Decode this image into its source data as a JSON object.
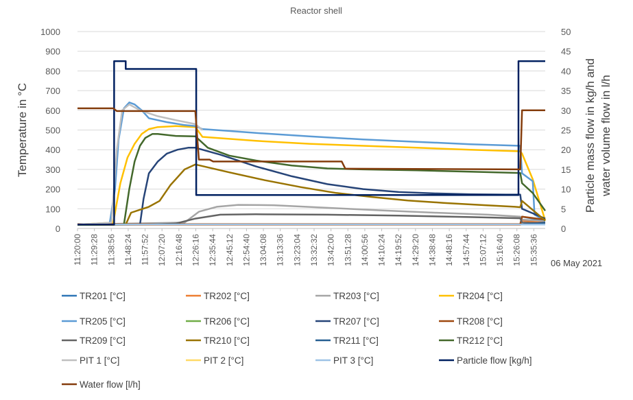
{
  "chart_data": {
    "type": "line",
    "title": "Reactor shell",
    "ylabel": "Temperature in °C",
    "y2label_line1": "Particle mass flow in kg/h and",
    "y2label_line2": "water volume flow in l/h",
    "date_note": "06 May 2021",
    "ylim": [
      0,
      1000
    ],
    "y2lim": [
      0,
      50
    ],
    "yticks": [
      "0",
      "100",
      "200",
      "300",
      "400",
      "500",
      "600",
      "700",
      "800",
      "900",
      "1000"
    ],
    "y2ticks": [
      "0",
      "5",
      "10",
      "15",
      "20",
      "25",
      "30",
      "35",
      "40",
      "45",
      "50"
    ],
    "xlim": [
      "11:20:00",
      "15:42:00"
    ],
    "xticks": [
      "11:20:00",
      "11:29:28",
      "11:38:56",
      "11:48:24",
      "11:57:52",
      "12:07:20",
      "12:16:48",
      "12:26:16",
      "12:35:44",
      "12:45:12",
      "12:54:40",
      "13:04:08",
      "13:13:36",
      "13:23:04",
      "13:32:32",
      "13:42:00",
      "13:51:28",
      "14:00:56",
      "14:10:24",
      "14:19:52",
      "14:29:20",
      "14:38:48",
      "14:48:16",
      "14:57:44",
      "15:07:12",
      "15:16:40",
      "15:26:08",
      "15:35:36"
    ],
    "grid": true,
    "legend_position": "bottom",
    "series": [
      {
        "name": "TR201 [°C]",
        "color": "#2E75B6",
        "axis": "left",
        "x": [
          "11:20:00",
          "15:28:00",
          "15:29:00",
          "15:42:00"
        ],
        "y": [
          20,
          20,
          60,
          40
        ]
      },
      {
        "name": "TR202 [°C]",
        "color": "#ED7D31",
        "axis": "left",
        "x": [
          "11:20:00",
          "15:28:00",
          "15:29:00",
          "15:42:00"
        ],
        "y": [
          18,
          18,
          40,
          30
        ]
      },
      {
        "name": "TR203 [°C]",
        "color": "#A5A5A5",
        "axis": "left",
        "x": [
          "11:20:00",
          "12:20:00",
          "12:28:00",
          "12:38:00",
          "12:50:00",
          "13:10:00",
          "13:40:00",
          "14:10:00",
          "14:40:00",
          "15:10:00",
          "15:28:00",
          "15:29:00",
          "15:42:00"
        ],
        "y": [
          20,
          30,
          85,
          110,
          120,
          118,
          105,
          92,
          80,
          70,
          60,
          45,
          38
        ]
      },
      {
        "name": "TR204 [°C]",
        "color": "#FFC000",
        "axis": "left",
        "x": [
          "11:20:00",
          "11:40:00",
          "11:44:00",
          "11:48:00",
          "11:52:00",
          "11:56:00",
          "12:00:00",
          "12:05:00",
          "12:15:00",
          "12:26:00",
          "12:30:00",
          "12:45:00",
          "13:00:00",
          "13:30:00",
          "14:00:00",
          "14:30:00",
          "15:00:00",
          "15:28:00",
          "15:29:00",
          "15:35:00",
          "15:42:00"
        ],
        "y": [
          20,
          30,
          230,
          360,
          430,
          480,
          505,
          515,
          520,
          515,
          465,
          455,
          445,
          430,
          420,
          410,
          400,
          392,
          380,
          250,
          40
        ]
      },
      {
        "name": "TR205 [°C]",
        "color": "#5B9BD5",
        "axis": "left",
        "x": [
          "11:20:00",
          "11:38:00",
          "11:41:00",
          "11:43:00",
          "11:46:00",
          "11:49:00",
          "11:52:00",
          "11:56:00",
          "12:00:00",
          "12:10:00",
          "12:20:00",
          "12:26:00",
          "12:30:00",
          "12:45:00",
          "13:00:00",
          "13:30:00",
          "14:00:00",
          "14:30:00",
          "15:00:00",
          "15:28:00",
          "15:29:00",
          "15:35:00",
          "15:36:00",
          "15:42:00"
        ],
        "y": [
          20,
          25,
          200,
          450,
          610,
          640,
          630,
          600,
          560,
          540,
          525,
          520,
          505,
          495,
          485,
          468,
          452,
          440,
          428,
          420,
          280,
          240,
          70,
          40
        ]
      },
      {
        "name": "TR206 [°C]",
        "color": "#70AD47",
        "axis": "left",
        "x": [
          "11:20:00",
          "15:28:00",
          "15:42:00"
        ],
        "y": [
          20,
          20,
          20
        ]
      },
      {
        "name": "TR207 [°C]",
        "color": "#264478",
        "axis": "left",
        "x": [
          "11:20:00",
          "11:55:00",
          "11:57:00",
          "12:00:00",
          "12:05:00",
          "12:10:00",
          "12:16:00",
          "12:22:00",
          "12:26:00",
          "12:40:00",
          "13:00:00",
          "13:20:00",
          "13:40:00",
          "14:00:00",
          "14:20:00",
          "14:40:00",
          "15:00:00",
          "15:20:00",
          "15:28:00",
          "15:29:00",
          "15:42:00"
        ],
        "y": [
          20,
          20,
          150,
          280,
          340,
          380,
          400,
          410,
          410,
          375,
          315,
          265,
          225,
          200,
          185,
          178,
          174,
          172,
          172,
          100,
          50
        ]
      },
      {
        "name": "TR208 [°C]",
        "color": "#9E480E",
        "axis": "left",
        "x": [
          "11:20:00",
          "15:28:00",
          "15:29:00",
          "15:42:00"
        ],
        "y": [
          22,
          22,
          60,
          45
        ]
      },
      {
        "name": "TR209 [°C]",
        "color": "#636363",
        "axis": "left",
        "x": [
          "11:20:00",
          "12:00:00",
          "12:15:00",
          "12:26:00",
          "12:40:00",
          "13:00:00",
          "13:40:00",
          "14:20:00",
          "15:00:00",
          "15:28:00",
          "15:29:00",
          "15:42:00"
        ],
        "y": [
          18,
          20,
          25,
          50,
          70,
          72,
          70,
          65,
          58,
          52,
          30,
          25
        ]
      },
      {
        "name": "TR210 [°C]",
        "color": "#997300",
        "axis": "left",
        "x": [
          "11:20:00",
          "11:47:00",
          "11:50:00",
          "11:55:00",
          "12:00:00",
          "12:06:00",
          "12:12:00",
          "12:20:00",
          "12:26:00",
          "12:45:00",
          "13:05:00",
          "13:25:00",
          "13:45:00",
          "14:05:00",
          "14:25:00",
          "14:45:00",
          "15:05:00",
          "15:25:00",
          "15:28:00",
          "15:29:00",
          "15:42:00"
        ],
        "y": [
          18,
          20,
          80,
          95,
          110,
          140,
          220,
          300,
          325,
          285,
          245,
          210,
          180,
          160,
          142,
          130,
          120,
          110,
          108,
          140,
          40
        ]
      },
      {
        "name": "TR211 [°C]",
        "color": "#255E91",
        "axis": "left",
        "x": [
          "11:20:00",
          "15:28:00",
          "15:42:00"
        ],
        "y": [
          20,
          20,
          30
        ]
      },
      {
        "name": "TR212 [°C]",
        "color": "#43682B",
        "axis": "left",
        "x": [
          "11:20:00",
          "11:46:00",
          "11:49:00",
          "11:52:00",
          "11:55:00",
          "11:58:00",
          "12:02:00",
          "12:05:00",
          "12:15:00",
          "12:26:00",
          "12:33:00",
          "12:45:00",
          "13:00:00",
          "13:20:00",
          "13:40:00",
          "14:00:00",
          "14:30:00",
          "15:00:00",
          "15:28:00",
          "15:29:00",
          "15:35:00",
          "15:42:00"
        ],
        "y": [
          18,
          20,
          200,
          340,
          420,
          460,
          480,
          480,
          470,
          468,
          410,
          370,
          345,
          320,
          305,
          300,
          295,
          288,
          282,
          230,
          180,
          90
        ]
      },
      {
        "name": "PIT 1 [°C]",
        "color": "#BFBFBF",
        "axis": "left",
        "x": [
          "11:20:00",
          "11:39:00",
          "11:42:00",
          "11:45:00",
          "11:49:00",
          "11:55:00",
          "12:05:00",
          "12:15:00",
          "12:26:00",
          "12:30:00"
        ],
        "y": [
          20,
          30,
          400,
          600,
          630,
          600,
          570,
          550,
          530,
          500
        ]
      },
      {
        "name": "PIT 2 [°C]",
        "color": "#FFD966",
        "axis": "left",
        "x": [
          "11:20:00",
          "15:42:00"
        ],
        "y": [
          20,
          20
        ]
      },
      {
        "name": "PIT 3 [°C]",
        "color": "#9DC3E6",
        "axis": "left",
        "x": [
          "11:20:00",
          "15:42:00"
        ],
        "y": [
          20,
          20
        ]
      },
      {
        "name": "Particle flow [kg/h]",
        "color": "#002060",
        "axis": "right",
        "x": [
          "11:20:00",
          "11:40:30",
          "11:40:30",
          "11:47:00",
          "11:47:00",
          "12:26:30",
          "12:26:30",
          "15:27:00",
          "15:27:00",
          "15:28:00",
          "15:28:00",
          "15:42:00"
        ],
        "y": [
          1,
          1,
          42.5,
          42.5,
          40.5,
          40.5,
          8.5,
          8.5,
          42.5,
          42.5,
          42.5,
          42.5
        ]
      },
      {
        "name": "Water flow [l/h]",
        "color": "#843C0C",
        "axis": "right",
        "x": [
          "11:20:00",
          "11:40:00",
          "11:42:00",
          "12:26:00",
          "12:28:00",
          "12:34:00",
          "12:36:00",
          "13:48:00",
          "13:50:00",
          "15:28:00",
          "15:29:00",
          "15:42:00"
        ],
        "y": [
          30.5,
          30.5,
          29.8,
          29.8,
          17.5,
          17.5,
          17.0,
          17.0,
          15.2,
          15.0,
          30.0,
          30.0
        ]
      }
    ]
  }
}
